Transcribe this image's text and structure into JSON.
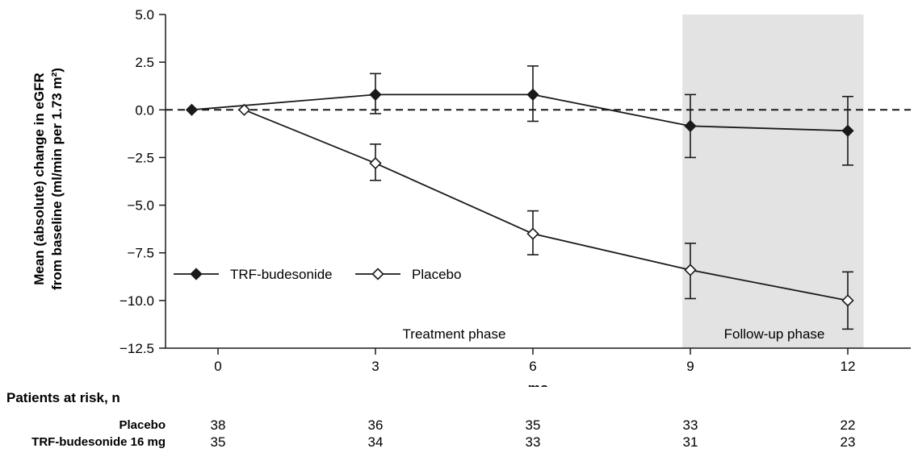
{
  "chart_data": {
    "type": "line",
    "xlabel": "mo",
    "ylabel_lines": [
      "Mean (absolute) change in eGFR",
      "from baseline (ml/min per 1.73 m²)"
    ],
    "xlim": [
      -1,
      13.2
    ],
    "ylim": [
      -12.5,
      5.0
    ],
    "x_ticks": [
      0,
      3,
      6,
      9,
      12
    ],
    "y_ticks": [
      5.0,
      2.5,
      0.0,
      -2.5,
      -5.0,
      -7.5,
      -10.0,
      -12.5
    ],
    "y_tick_labels": [
      "5.0",
      "2.5",
      "0.0",
      "−2.5",
      "−5.0",
      "−7.5",
      "−10.0",
      "−12.5"
    ],
    "reference_line": {
      "y": 0,
      "style": "dashed"
    },
    "shaded_region": {
      "x": [
        8.85,
        12.3
      ],
      "label": "Follow-up phase",
      "color": "#e3e3e3"
    },
    "phase_labels": [
      {
        "text": "Treatment phase",
        "x": 4.5
      },
      {
        "text": "Follow-up phase",
        "x": 10.6
      }
    ],
    "legend_position": "lower-left",
    "series": [
      {
        "name": "TRF-budesonide",
        "marker": "filled-diamond",
        "x": [
          -0.5,
          3,
          6,
          9,
          12
        ],
        "y": [
          0.0,
          0.8,
          0.8,
          -0.85,
          -1.1
        ],
        "err_low": [
          0.0,
          -0.2,
          -0.6,
          -2.5,
          -2.9
        ],
        "err_high": [
          0.0,
          1.9,
          2.3,
          0.8,
          0.7
        ]
      },
      {
        "name": "Placebo",
        "marker": "open-diamond",
        "x": [
          0.5,
          3,
          6,
          9,
          12
        ],
        "y": [
          0.0,
          -2.8,
          -6.5,
          -8.4,
          -10.0
        ],
        "err_low": [
          0.0,
          -3.7,
          -7.6,
          -9.9,
          -11.5
        ],
        "err_high": [
          0.0,
          -1.8,
          -5.3,
          -7.0,
          -8.5
        ]
      }
    ]
  },
  "risk_table": {
    "title": "Patients at risk, n",
    "rows": [
      {
        "label": "Placebo",
        "values": [
          "38",
          "36",
          "35",
          "33",
          "22"
        ]
      },
      {
        "label": "TRF-budesonide 16 mg",
        "values": [
          "35",
          "34",
          "33",
          "31",
          "23"
        ]
      }
    ]
  },
  "colors": {
    "line": "#1a1a1a",
    "shade": "#e3e3e3",
    "marker_open_fill": "#ffffff"
  }
}
